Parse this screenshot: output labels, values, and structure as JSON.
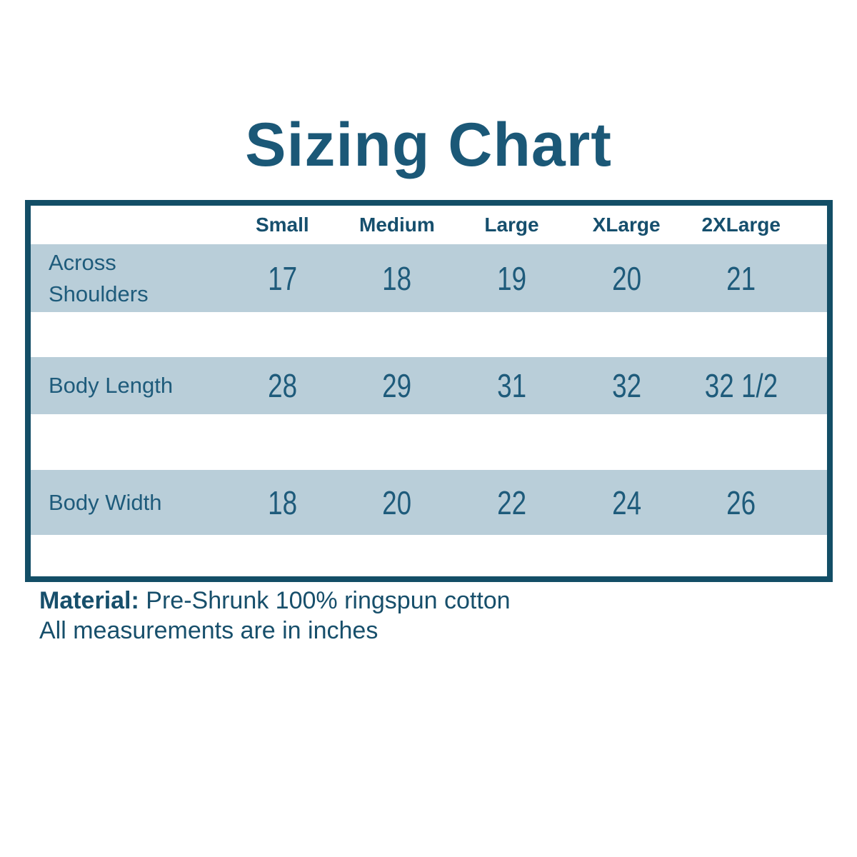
{
  "title": "Sizing Chart",
  "colors": {
    "accent_dark": "#134e66",
    "text_teal": "#1e5b7b",
    "title_teal": "#1b5877",
    "row_background": "#b9ced9",
    "page_background": "#ffffff"
  },
  "chart_data": {
    "type": "table",
    "title": "Sizing Chart",
    "columns": [
      "",
      "Small",
      "Medium",
      "Large",
      "XLarge",
      "2XLarge"
    ],
    "rows": [
      [
        "Across Shoulders",
        "17",
        "18",
        "19",
        "20",
        "21"
      ],
      [
        "Body Length",
        "28",
        "29",
        "31",
        "32",
        "32 1/2"
      ],
      [
        "Body Width",
        "18",
        "20",
        "22",
        "24",
        "26"
      ]
    ],
    "layout_hints": {
      "shaded_data_rows": true,
      "spacer_rows_between_data": true,
      "border": "thick dark teal outer border"
    }
  },
  "footer": {
    "material_label": "Material:",
    "material_value": "Pre-Shrunk 100% ringspun cotton",
    "note": "All measurements are in inches"
  }
}
